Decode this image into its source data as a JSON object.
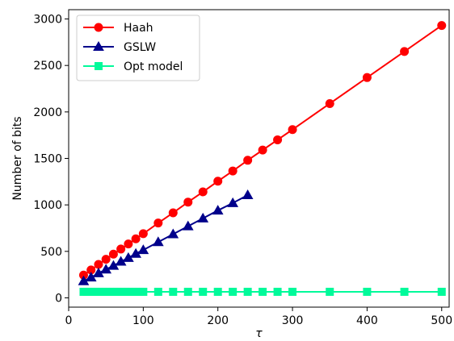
{
  "chart_data": {
    "type": "line",
    "xlabel": "τ",
    "ylabel": "Number of bits",
    "xlim": [
      0,
      510
    ],
    "ylim": [
      -100,
      3100
    ],
    "xticks": [
      0,
      100,
      200,
      300,
      400,
      500
    ],
    "yticks": [
      0,
      500,
      1000,
      1500,
      2000,
      2500,
      3000
    ],
    "grid": false,
    "legend_position": "top-left",
    "series": [
      {
        "name": "Haah",
        "color": "#ff0000",
        "marker": "circle",
        "x": [
          20,
          30,
          40,
          50,
          60,
          70,
          80,
          90,
          100,
          120,
          140,
          160,
          180,
          200,
          220,
          240,
          260,
          280,
          300,
          350,
          400,
          450,
          500
        ],
        "values": [
          245,
          300,
          360,
          415,
          470,
          525,
          580,
          635,
          690,
          805,
          915,
          1030,
          1140,
          1255,
          1365,
          1480,
          1590,
          1700,
          1810,
          2090,
          2370,
          2650,
          2930
        ]
      },
      {
        "name": "GSLW",
        "color": "#00008b",
        "marker": "triangle",
        "x": [
          20,
          30,
          40,
          50,
          60,
          70,
          80,
          90,
          100,
          120,
          140,
          160,
          180,
          200,
          220,
          240
        ],
        "values": [
          180,
          220,
          265,
          305,
          345,
          390,
          430,
          475,
          515,
          600,
          685,
          770,
          855,
          940,
          1020,
          1105
        ]
      },
      {
        "name": "Opt model",
        "color": "#00fa9a",
        "marker": "square",
        "x": [
          20,
          25,
          30,
          35,
          40,
          45,
          50,
          55,
          60,
          65,
          70,
          75,
          80,
          85,
          90,
          95,
          100,
          120,
          140,
          160,
          180,
          200,
          220,
          240,
          260,
          280,
          300,
          350,
          400,
          450,
          500
        ],
        "values": [
          65,
          65,
          65,
          65,
          65,
          65,
          65,
          65,
          65,
          65,
          65,
          65,
          65,
          65,
          65,
          65,
          65,
          65,
          65,
          65,
          65,
          65,
          65,
          65,
          65,
          65,
          65,
          65,
          65,
          65,
          65
        ]
      }
    ]
  }
}
